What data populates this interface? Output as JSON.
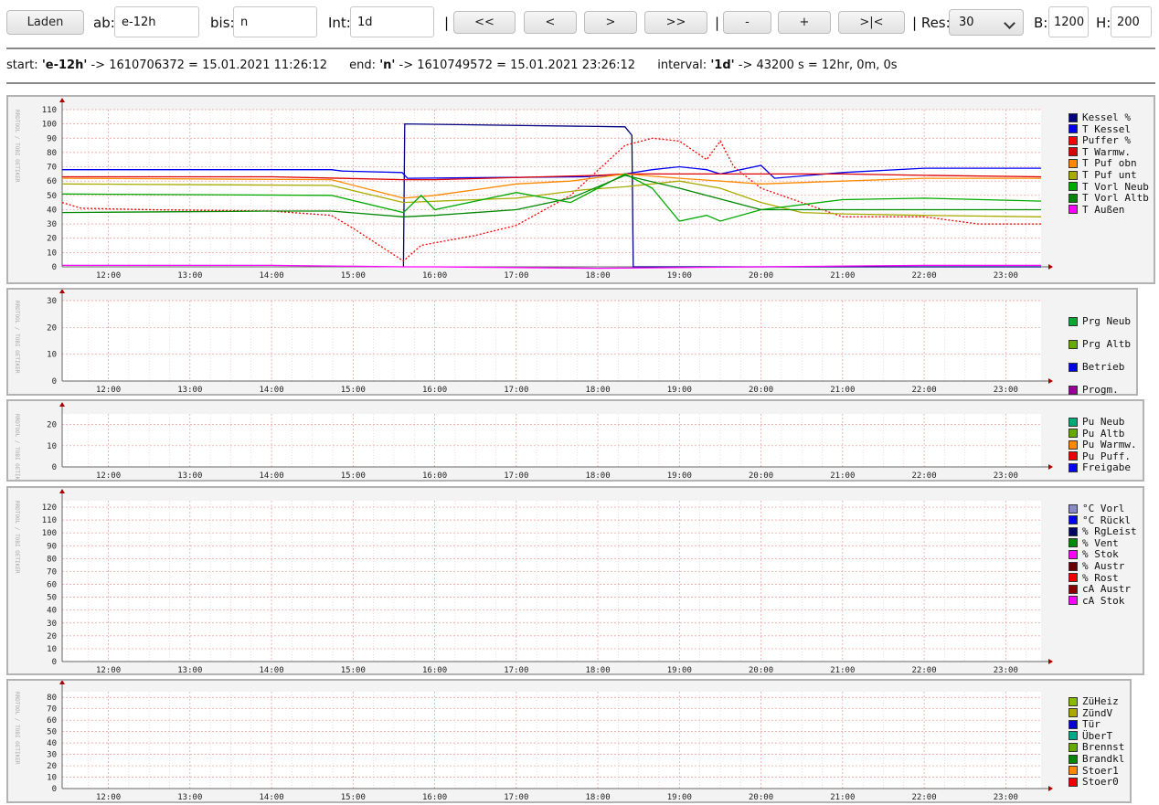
{
  "toolbar": {
    "load_label": "Laden",
    "from_label": "ab:",
    "from_value": "e-12h",
    "to_label": "bis:",
    "to_value": "n",
    "interval_label": "Int:",
    "interval_value": "1d",
    "sep1": "|",
    "nav_first": "<<",
    "nav_prev": "<",
    "nav_next": ">",
    "nav_last": ">>",
    "sep2": "|",
    "zoom_out": "-",
    "zoom_in": "+",
    "zoom_fit": ">|<",
    "res_label": "| Res:",
    "res_value": "30",
    "width_label": "B:",
    "width_value": "1200",
    "height_label": "H:",
    "height_value": "200"
  },
  "info": {
    "start_label": "start:",
    "start_key": "'e-12h'",
    "start_rest": "-> 1610706372 = 15.01.2021 11:26:12",
    "end_label": "end:",
    "end_key": "'n'",
    "end_rest": "-> 1610749572 = 15.01.2021 23:26:12",
    "interval_label": "interval:",
    "interval_key": "'1d'",
    "interval_rest": "-> 43200 s = 12hr, 0m, 0s"
  },
  "watermark": "RRDTOOL / TOBI OETIKER",
  "time_ticks": [
    "12:00",
    "13:00",
    "14:00",
    "15:00",
    "16:00",
    "17:00",
    "18:00",
    "19:00",
    "20:00",
    "21:00",
    "22:00",
    "23:00"
  ],
  "colors": {
    "panel_bg": "#f3f3f3",
    "plot_bg": "#ffffff",
    "grid_minor": "#f2caca",
    "grid_major": "#e99a9a"
  },
  "chart_data": [
    {
      "type": "line",
      "name_ref": "temperatures",
      "yticks": [
        0,
        10,
        20,
        30,
        40,
        50,
        60,
        70,
        80,
        90,
        100,
        110
      ],
      "ylim": [
        0,
        110
      ],
      "xlim": [
        "11:26",
        "23:26"
      ],
      "series": [
        {
          "name": "Kessel %",
          "color": "#000080",
          "x": [
            "11:26",
            "15:37",
            "15:38",
            "18:20",
            "18:25",
            "18:26",
            "23:26"
          ],
          "values": [
            null,
            0,
            100,
            98,
            92,
            0,
            0
          ]
        },
        {
          "name": "T Kessel",
          "color": "#0000ee",
          "x": [
            "11:26",
            "14:44",
            "14:52",
            "15:36",
            "15:40",
            "17:50",
            "18:20",
            "18:40",
            "19:00",
            "19:20",
            "19:30",
            "20:00",
            "20:10",
            "21:00",
            "22:00",
            "23:26"
          ],
          "values": [
            68,
            68,
            67,
            66,
            62,
            63,
            65,
            68,
            70,
            68,
            65,
            71,
            62,
            66,
            69,
            69
          ]
        },
        {
          "name": "Puffer %",
          "color": "#ff0000",
          "x": [
            "11:26",
            "11:40",
            "12:30",
            "14:00",
            "14:44",
            "15:00",
            "15:37",
            "15:50",
            "16:30",
            "17:00",
            "17:40",
            "18:20",
            "18:40",
            "19:00",
            "19:20",
            "19:30",
            "19:40",
            "20:00",
            "20:30",
            "21:00",
            "22:00",
            "22:40",
            "23:26"
          ],
          "values": [
            45,
            41,
            40,
            39,
            36,
            27,
            4,
            15,
            22,
            29,
            50,
            85,
            90,
            88,
            75,
            88,
            70,
            55,
            45,
            35,
            35,
            30,
            30
          ]
        },
        {
          "name": "T Warmw.",
          "color": "#dd0000",
          "x": [
            "11:26",
            "14:00",
            "15:37",
            "16:00",
            "18:00",
            "18:20",
            "19:00",
            "20:00",
            "21:00",
            "22:00",
            "23:26"
          ],
          "values": [
            63,
            63,
            61,
            61,
            64,
            65,
            65,
            65,
            65,
            64,
            63
          ]
        },
        {
          "name": "T Puf obn",
          "color": "#ff8800",
          "x": [
            "11:26",
            "14:44",
            "15:37",
            "16:00",
            "16:30",
            "17:00",
            "17:40",
            "18:20",
            "19:00",
            "20:00",
            "21:00",
            "22:00",
            "23:26"
          ],
          "values": [
            62,
            61,
            48,
            50,
            54,
            58,
            60,
            65,
            62,
            58,
            60,
            62,
            62
          ]
        },
        {
          "name": "T Puf unt",
          "color": "#aaaa00",
          "x": [
            "11:26",
            "14:44",
            "15:37",
            "16:30",
            "17:00",
            "17:50",
            "18:20",
            "19:00",
            "19:30",
            "20:00",
            "20:30",
            "21:00",
            "22:00",
            "23:26"
          ],
          "values": [
            58,
            57,
            45,
            47,
            48,
            54,
            56,
            60,
            55,
            45,
            38,
            37,
            36,
            35
          ]
        },
        {
          "name": "T Vorl Neub",
          "color": "#00aa00",
          "x": [
            "11:26",
            "14:44",
            "15:37",
            "15:50",
            "16:00",
            "17:00",
            "17:40",
            "18:20",
            "18:40",
            "19:00",
            "19:20",
            "19:30",
            "20:00",
            "21:00",
            "22:00",
            "23:26"
          ],
          "values": [
            51,
            50,
            38,
            50,
            40,
            52,
            45,
            65,
            55,
            32,
            36,
            32,
            40,
            47,
            48,
            46
          ]
        },
        {
          "name": "T Vorl Altb",
          "color": "#008800",
          "x": [
            "11:26",
            "14:00",
            "14:44",
            "15:37",
            "16:00",
            "17:00",
            "17:40",
            "18:20",
            "19:00",
            "20:00",
            "21:00",
            "22:00",
            "23:26"
          ],
          "values": [
            38,
            39,
            39,
            35,
            36,
            40,
            48,
            64,
            55,
            40,
            40,
            40,
            40
          ]
        },
        {
          "name": "T Außen",
          "color": "#ff00ff",
          "x": [
            "11:26",
            "14:00",
            "15:37",
            "16:00",
            "18:00",
            "20:00",
            "22:00",
            "23:26"
          ],
          "values": [
            1,
            1,
            0,
            0,
            -1,
            0,
            1,
            1
          ]
        }
      ]
    },
    {
      "type": "area",
      "name_ref": "programs",
      "yticks": [
        0,
        10,
        20,
        30
      ],
      "ylim": [
        0,
        30
      ],
      "series": [
        {
          "name": "Prg Neub",
          "color": "#00aa33"
        },
        {
          "name": "Prg Altb",
          "color": "#66aa00"
        },
        {
          "name": "Betrieb",
          "color": "#0000ee"
        },
        {
          "name": "Progm.",
          "color": "#990099"
        }
      ]
    },
    {
      "type": "line",
      "name_ref": "pumps",
      "yticks": [
        0,
        10,
        20
      ],
      "ylim": [
        0,
        25
      ],
      "series": [
        {
          "name": "Pu Neub",
          "color": "#00aa77"
        },
        {
          "name": "Pu Altb",
          "color": "#66aa00"
        },
        {
          "name": "Pu Warmw.",
          "color": "#ff8800"
        },
        {
          "name": "Pu Puff.",
          "color": "#ee0000"
        },
        {
          "name": "Freigabe",
          "color": "#0000ee"
        }
      ]
    },
    {
      "type": "line",
      "name_ref": "burner",
      "yticks": [
        0,
        10,
        20,
        30,
        40,
        50,
        60,
        70,
        80,
        90,
        100,
        110,
        120
      ],
      "ylim": [
        0,
        125
      ],
      "series": [
        {
          "name": "°C Vorl",
          "color": "#8888cc"
        },
        {
          "name": "°C Rückl",
          "color": "#0000ee"
        },
        {
          "name": "% RgLeist",
          "color": "#000066"
        },
        {
          "name": "% Vent",
          "color": "#008800"
        },
        {
          "name": "% Stok",
          "color": "#ff00ff"
        },
        {
          "name": "% Austr",
          "color": "#660000"
        },
        {
          "name": "% Rost",
          "color": "#ee0000"
        },
        {
          "name": "cA Austr",
          "color": "#880000"
        },
        {
          "name": "cA Stok",
          "color": "#ff00ff"
        }
      ]
    },
    {
      "type": "line",
      "name_ref": "signals",
      "yticks": [
        0,
        10,
        20,
        30,
        40,
        50,
        60,
        70,
        80
      ],
      "ylim": [
        0,
        85
      ],
      "series": [
        {
          "name": "ZüHeiz",
          "color": "#88bb00"
        },
        {
          "name": "ZündV",
          "color": "#aaaa00"
        },
        {
          "name": "Tür",
          "color": "#0000cc"
        },
        {
          "name": "ÜberT",
          "color": "#00aa88"
        },
        {
          "name": "Brennst",
          "color": "#66aa00"
        },
        {
          "name": "Brandkl",
          "color": "#008800"
        },
        {
          "name": "Stoer1",
          "color": "#ff8800"
        },
        {
          "name": "Stoer0",
          "color": "#ee0000"
        }
      ]
    }
  ]
}
